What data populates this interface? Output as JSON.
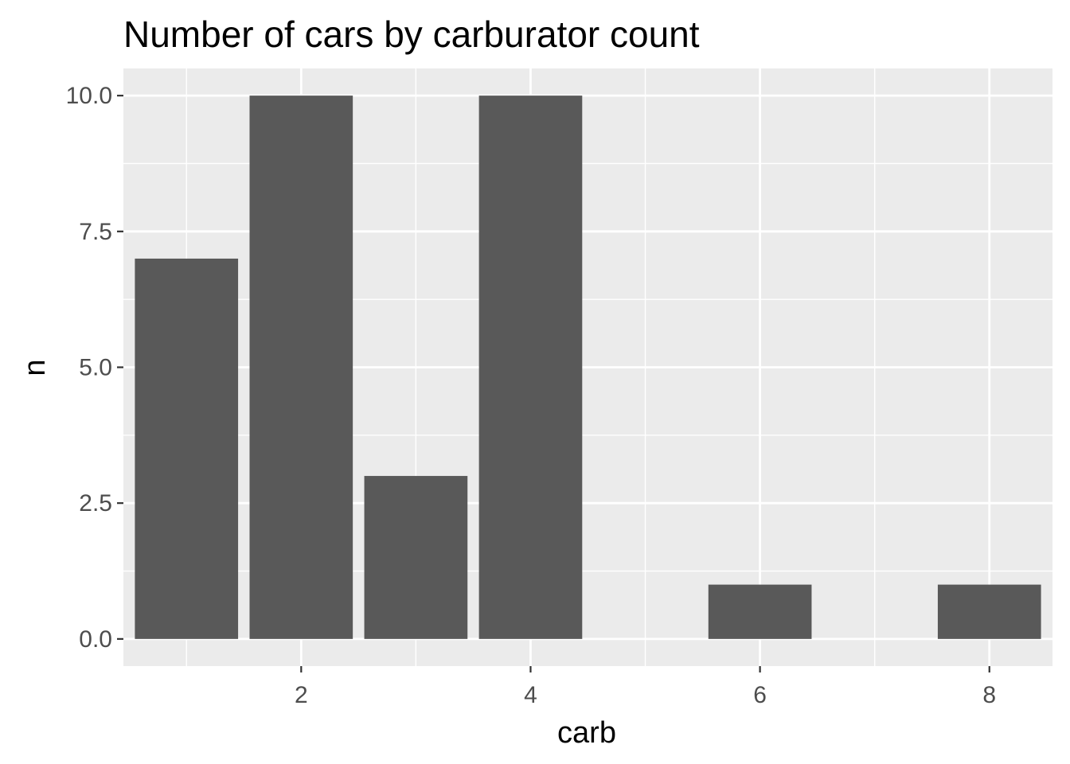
{
  "chart_data": {
    "type": "bar",
    "title": "Number of cars by carburator count",
    "xlabel": "carb",
    "ylabel": "n",
    "x": [
      1,
      2,
      3,
      4,
      6,
      8
    ],
    "values": [
      7,
      10,
      3,
      10,
      1,
      1
    ],
    "xlim": [
      0.45,
      8.55
    ],
    "ylim": [
      -0.5,
      10.5
    ],
    "x_ticks": [
      2,
      4,
      6,
      8
    ],
    "x_tick_labels": [
      "2",
      "4",
      "6",
      "8"
    ],
    "x_minor_ticks": [
      1,
      3,
      5,
      7
    ],
    "y_ticks": [
      0,
      2.5,
      5,
      7.5,
      10
    ],
    "y_tick_labels": [
      "0.0",
      "2.5",
      "5.0",
      "7.5",
      "10.0"
    ],
    "y_minor_ticks": [
      1.25,
      3.75,
      6.25,
      8.75
    ],
    "bar_width": 0.9,
    "grid": true,
    "legend": "none",
    "colors": {
      "bar": "#595959",
      "panel": "#ebebeb",
      "grid": "#ffffff",
      "tick": "#333333",
      "tick_label": "#4d4d4d"
    }
  }
}
